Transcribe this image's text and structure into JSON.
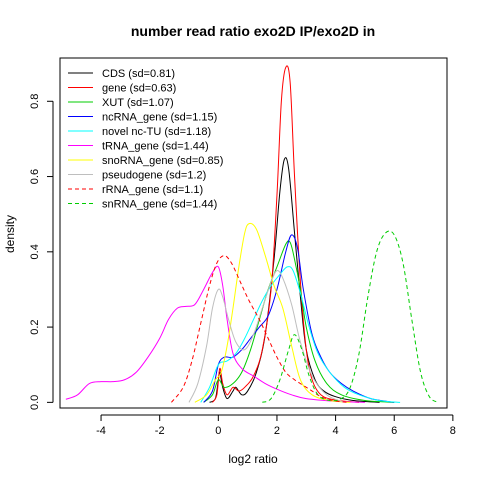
{
  "chart_data": {
    "type": "line",
    "title": "number read ratio exo2D IP/exo2D in",
    "xlabel": "log2 ratio",
    "ylabel": "density",
    "xlim": [
      -5.4,
      7.8
    ],
    "ylim": [
      -0.015,
      0.915
    ],
    "x_ticks": [
      -4,
      -2,
      0,
      2,
      4,
      6,
      8
    ],
    "x_tick_labels": [
      "-4",
      "-2",
      "0",
      "2",
      "4",
      "6",
      "8"
    ],
    "y_ticks": [
      0.0,
      0.2,
      0.4,
      0.6,
      0.8
    ],
    "y_tick_labels": [
      "0.0",
      "0.2",
      "0.4",
      "0.6",
      "0.8"
    ],
    "grid": false,
    "legend_position": "top-left",
    "series": [
      {
        "name": "CDS (sd=0.81)",
        "color": "#000000",
        "dash": "solid",
        "points": [
          [
            -0.3,
            0.0
          ],
          [
            -0.1,
            0.01
          ],
          [
            0.0,
            0.06
          ],
          [
            0.05,
            0.08
          ],
          [
            0.15,
            0.04
          ],
          [
            0.3,
            0.01
          ],
          [
            0.5,
            0.03
          ],
          [
            0.6,
            0.04
          ],
          [
            0.8,
            0.02
          ],
          [
            1.0,
            0.03
          ],
          [
            1.3,
            0.08
          ],
          [
            1.6,
            0.18
          ],
          [
            1.9,
            0.38
          ],
          [
            2.1,
            0.56
          ],
          [
            2.25,
            0.645
          ],
          [
            2.4,
            0.62
          ],
          [
            2.6,
            0.45
          ],
          [
            2.8,
            0.28
          ],
          [
            3.0,
            0.14
          ],
          [
            3.3,
            0.06
          ],
          [
            3.6,
            0.03
          ],
          [
            4.0,
            0.015
          ],
          [
            4.6,
            0.005
          ],
          [
            5.5,
            0.0
          ]
        ]
      },
      {
        "name": "gene (sd=0.63)",
        "color": "#ff0000",
        "dash": "solid",
        "points": [
          [
            -0.2,
            0.0
          ],
          [
            -0.05,
            0.02
          ],
          [
            0.05,
            0.09
          ],
          [
            0.15,
            0.05
          ],
          [
            0.3,
            0.02
          ],
          [
            0.5,
            0.04
          ],
          [
            0.7,
            0.03
          ],
          [
            0.9,
            0.04
          ],
          [
            1.2,
            0.07
          ],
          [
            1.5,
            0.14
          ],
          [
            1.8,
            0.3
          ],
          [
            2.0,
            0.55
          ],
          [
            2.15,
            0.8
          ],
          [
            2.3,
            0.89
          ],
          [
            2.45,
            0.85
          ],
          [
            2.6,
            0.6
          ],
          [
            2.8,
            0.32
          ],
          [
            3.0,
            0.14
          ],
          [
            3.2,
            0.06
          ],
          [
            3.5,
            0.02
          ],
          [
            4.0,
            0.006
          ],
          [
            4.8,
            0.0
          ]
        ]
      },
      {
        "name": "XUT (sd=1.07)",
        "color": "#00cd00",
        "dash": "solid",
        "points": [
          [
            -0.5,
            0.0
          ],
          [
            -0.2,
            0.02
          ],
          [
            0.0,
            0.06
          ],
          [
            0.2,
            0.04
          ],
          [
            0.5,
            0.05
          ],
          [
            0.8,
            0.08
          ],
          [
            1.1,
            0.14
          ],
          [
            1.4,
            0.22
          ],
          [
            1.7,
            0.3
          ],
          [
            2.0,
            0.36
          ],
          [
            2.3,
            0.42
          ],
          [
            2.45,
            0.425
          ],
          [
            2.6,
            0.38
          ],
          [
            2.8,
            0.3
          ],
          [
            3.0,
            0.2
          ],
          [
            3.3,
            0.11
          ],
          [
            3.7,
            0.05
          ],
          [
            4.2,
            0.02
          ],
          [
            5.0,
            0.005
          ],
          [
            6.0,
            0.0
          ]
        ]
      },
      {
        "name": "ncRNA_gene (sd=1.15)",
        "color": "#0000ff",
        "dash": "solid",
        "points": [
          [
            -0.5,
            0.0
          ],
          [
            -0.2,
            0.03
          ],
          [
            0.0,
            0.1
          ],
          [
            0.2,
            0.12
          ],
          [
            0.5,
            0.12
          ],
          [
            0.8,
            0.14
          ],
          [
            1.1,
            0.17
          ],
          [
            1.4,
            0.2
          ],
          [
            1.7,
            0.23
          ],
          [
            2.0,
            0.3
          ],
          [
            2.3,
            0.4
          ],
          [
            2.5,
            0.445
          ],
          [
            2.7,
            0.41
          ],
          [
            2.9,
            0.3
          ],
          [
            3.2,
            0.18
          ],
          [
            3.5,
            0.12
          ],
          [
            3.8,
            0.08
          ],
          [
            4.2,
            0.05
          ],
          [
            4.6,
            0.03
          ],
          [
            5.2,
            0.01
          ],
          [
            6.0,
            0.0
          ]
        ]
      },
      {
        "name": "novel nc-TU (sd=1.18)",
        "color": "#00ffff",
        "dash": "solid",
        "points": [
          [
            -0.6,
            0.0
          ],
          [
            -0.3,
            0.04
          ],
          [
            0.0,
            0.1
          ],
          [
            0.3,
            0.11
          ],
          [
            0.6,
            0.13
          ],
          [
            0.9,
            0.17
          ],
          [
            1.2,
            0.22
          ],
          [
            1.5,
            0.27
          ],
          [
            1.8,
            0.31
          ],
          [
            2.1,
            0.34
          ],
          [
            2.35,
            0.36
          ],
          [
            2.55,
            0.35
          ],
          [
            2.8,
            0.29
          ],
          [
            3.1,
            0.2
          ],
          [
            3.4,
            0.13
          ],
          [
            3.8,
            0.08
          ],
          [
            4.3,
            0.04
          ],
          [
            4.8,
            0.02
          ],
          [
            5.5,
            0.005
          ],
          [
            6.2,
            0.0
          ]
        ]
      },
      {
        "name": "tRNA_gene (sd=1.44)",
        "color": "#ff00ff",
        "dash": "solid",
        "points": [
          [
            -5.2,
            0.008
          ],
          [
            -4.8,
            0.02
          ],
          [
            -4.4,
            0.05
          ],
          [
            -4.0,
            0.055
          ],
          [
            -3.6,
            0.055
          ],
          [
            -3.2,
            0.06
          ],
          [
            -2.8,
            0.08
          ],
          [
            -2.4,
            0.12
          ],
          [
            -2.0,
            0.17
          ],
          [
            -1.7,
            0.22
          ],
          [
            -1.4,
            0.25
          ],
          [
            -1.1,
            0.255
          ],
          [
            -0.8,
            0.26
          ],
          [
            -0.5,
            0.3
          ],
          [
            -0.2,
            0.345
          ],
          [
            0.0,
            0.36
          ],
          [
            0.15,
            0.31
          ],
          [
            0.3,
            0.22
          ],
          [
            0.5,
            0.13
          ],
          [
            0.8,
            0.09
          ],
          [
            1.2,
            0.07
          ],
          [
            1.6,
            0.05
          ],
          [
            2.0,
            0.035
          ],
          [
            2.5,
            0.02
          ],
          [
            3.0,
            0.01
          ],
          [
            4.0,
            0.003
          ],
          [
            5.0,
            0.0
          ]
        ]
      },
      {
        "name": "snoRNA_gene (sd=0.85)",
        "color": "#ffff00",
        "dash": "solid",
        "points": [
          [
            -0.8,
            0.0
          ],
          [
            -0.4,
            0.02
          ],
          [
            -0.1,
            0.06
          ],
          [
            0.1,
            0.08
          ],
          [
            0.3,
            0.15
          ],
          [
            0.5,
            0.25
          ],
          [
            0.7,
            0.36
          ],
          [
            0.9,
            0.45
          ],
          [
            1.05,
            0.475
          ],
          [
            1.3,
            0.46
          ],
          [
            1.6,
            0.39
          ],
          [
            1.9,
            0.31
          ],
          [
            2.2,
            0.25
          ],
          [
            2.5,
            0.15
          ],
          [
            2.8,
            0.06
          ],
          [
            3.2,
            0.02
          ],
          [
            3.8,
            0.005
          ],
          [
            4.5,
            0.0
          ]
        ]
      },
      {
        "name": "pseudogene (sd=1.2)",
        "color": "#bebebe",
        "dash": "solid",
        "points": [
          [
            -1.0,
            0.0
          ],
          [
            -0.7,
            0.05
          ],
          [
            -0.4,
            0.15
          ],
          [
            -0.2,
            0.25
          ],
          [
            0.0,
            0.3
          ],
          [
            0.15,
            0.28
          ],
          [
            0.35,
            0.22
          ],
          [
            0.6,
            0.16
          ],
          [
            0.9,
            0.14
          ],
          [
            1.2,
            0.18
          ],
          [
            1.5,
            0.25
          ],
          [
            1.8,
            0.32
          ],
          [
            2.0,
            0.35
          ],
          [
            2.2,
            0.33
          ],
          [
            2.5,
            0.26
          ],
          [
            2.8,
            0.16
          ],
          [
            3.2,
            0.07
          ],
          [
            3.7,
            0.02
          ],
          [
            4.3,
            0.0
          ]
        ]
      },
      {
        "name": "rRNA_gene (sd=1.1)",
        "color": "#ff0000",
        "dash": "dashed",
        "points": [
          [
            -1.6,
            0.0
          ],
          [
            -1.2,
            0.04
          ],
          [
            -0.9,
            0.11
          ],
          [
            -0.6,
            0.21
          ],
          [
            -0.3,
            0.31
          ],
          [
            -0.05,
            0.37
          ],
          [
            0.2,
            0.39
          ],
          [
            0.45,
            0.37
          ],
          [
            0.75,
            0.32
          ],
          [
            1.05,
            0.27
          ],
          [
            1.4,
            0.22
          ],
          [
            1.7,
            0.17
          ],
          [
            2.0,
            0.12
          ],
          [
            2.3,
            0.08
          ],
          [
            2.6,
            0.06
          ],
          [
            2.9,
            0.045
          ],
          [
            3.2,
            0.03
          ],
          [
            3.5,
            0.015
          ],
          [
            3.9,
            0.005
          ],
          [
            4.4,
            0.0
          ]
        ]
      },
      {
        "name": "snRNA_gene (sd=1.44)",
        "color": "#00cd00",
        "dash": "dashed",
        "points": [
          [
            1.5,
            0.0
          ],
          [
            1.8,
            0.01
          ],
          [
            2.1,
            0.06
          ],
          [
            2.4,
            0.14
          ],
          [
            2.6,
            0.18
          ],
          [
            2.85,
            0.14
          ],
          [
            3.1,
            0.07
          ],
          [
            3.4,
            0.02
          ],
          [
            3.8,
            0.005
          ],
          [
            4.2,
            0.01
          ],
          [
            4.5,
            0.04
          ],
          [
            4.8,
            0.13
          ],
          [
            5.1,
            0.28
          ],
          [
            5.4,
            0.4
          ],
          [
            5.7,
            0.45
          ],
          [
            6.0,
            0.445
          ],
          [
            6.3,
            0.37
          ],
          [
            6.6,
            0.22
          ],
          [
            6.9,
            0.08
          ],
          [
            7.2,
            0.015
          ],
          [
            7.5,
            0.0
          ]
        ]
      }
    ]
  }
}
